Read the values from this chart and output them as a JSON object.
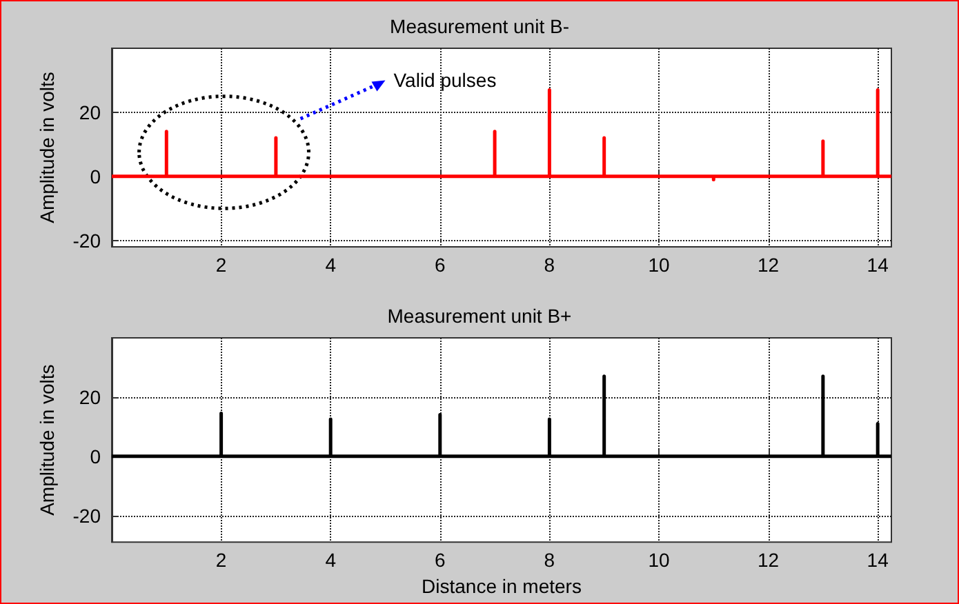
{
  "chart_data": [
    {
      "type": "line",
      "title": "Measurement unit B-",
      "ylabel": "Amplitude in volts",
      "x": [
        0,
        1,
        1,
        1,
        3,
        3,
        3,
        7,
        7,
        7,
        8,
        8,
        8,
        9,
        9,
        9,
        11,
        11,
        11,
        13,
        13,
        13,
        14,
        14,
        14,
        14.25
      ],
      "series": [
        {
          "color": "#ff0000",
          "values": [
            0,
            0,
            14,
            0,
            0,
            12,
            0,
            0,
            14,
            0,
            0,
            27,
            0,
            0,
            12,
            0,
            0,
            -1,
            0,
            0,
            11,
            0,
            0,
            27,
            0,
            0
          ]
        }
      ],
      "xlim": [
        0,
        14.25
      ],
      "ylim": [
        -22,
        40
      ],
      "xticks": [
        2,
        4,
        6,
        8,
        10,
        12,
        14
      ],
      "yticks": [
        -20,
        0,
        20
      ],
      "grid": true,
      "annotations": [
        "Valid pulses"
      ]
    },
    {
      "type": "line",
      "title": "Measurement unit B+",
      "ylabel": "Amplitude in volts",
      "xlabel": "Distance in meters",
      "x": [
        0,
        2,
        2,
        2,
        4,
        4,
        4,
        6,
        6,
        6,
        8,
        8,
        8,
        9,
        9,
        9,
        13,
        13,
        13,
        14,
        14,
        14,
        14.25
      ],
      "series": [
        {
          "color": "#000000",
          "values": [
            0,
            0,
            14.5,
            0,
            0,
            12.5,
            0,
            0,
            14,
            0,
            0,
            12.5,
            0,
            0,
            27,
            0,
            0,
            27,
            0,
            0,
            11,
            0,
            0
          ]
        }
      ],
      "xlim": [
        0,
        14.25
      ],
      "ylim": [
        -29,
        40
      ],
      "xticks": [
        2,
        4,
        6,
        8,
        10,
        12,
        14
      ],
      "yticks": [
        -20,
        0,
        20
      ],
      "grid": true
    }
  ]
}
